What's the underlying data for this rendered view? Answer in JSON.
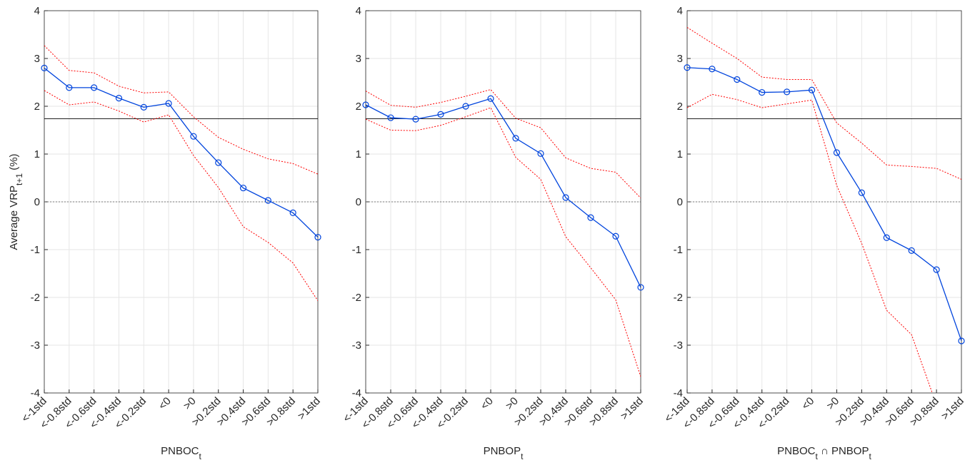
{
  "chart_data": [
    {
      "type": "line",
      "ylabel": [
        {
          "text": "Average VRP"
        },
        {
          "text": "t+1",
          "sub": true
        },
        {
          "text": " (%)"
        }
      ],
      "xlabel": [
        {
          "text": "PNBOC"
        },
        {
          "text": "t",
          "sub": true
        }
      ],
      "categories": [
        "<-1std",
        "<-0.8std",
        "<-0.6std",
        "<-0.4std",
        "<-0.2std",
        "<0",
        ">0",
        ">0.2std",
        ">0.4std",
        ">0.6std",
        ">0.8std",
        ">1std"
      ],
      "ylim": [
        -4,
        4
      ],
      "yticks": [
        -4,
        -3,
        -2,
        -1,
        0,
        1,
        2,
        3,
        4
      ],
      "grid": true,
      "hlines": [
        {
          "value": 1.74,
          "color": "#000000",
          "style": "solid"
        },
        {
          "value": 0,
          "color": "#555555",
          "style": "dotted"
        }
      ],
      "series": [
        {
          "color": "#ff0000",
          "style": "dotted",
          "values": [
            3.27,
            2.75,
            2.7,
            2.42,
            2.28,
            2.3,
            1.78,
            1.35,
            1.1,
            0.9,
            0.8,
            0.58
          ]
        },
        {
          "color": "#ff0000",
          "style": "dotted",
          "values": [
            2.33,
            2.03,
            2.09,
            1.9,
            1.67,
            1.82,
            0.97,
            0.3,
            -0.52,
            -0.85,
            -1.28,
            -2.07
          ]
        },
        {
          "color": "#0044dd",
          "style": "solid",
          "marker": "circle",
          "values": [
            2.8,
            2.39,
            2.39,
            2.17,
            1.98,
            2.06,
            1.37,
            0.82,
            0.29,
            0.03,
            -0.23,
            -0.74
          ]
        }
      ]
    },
    {
      "type": "line",
      "xlabel": [
        {
          "text": "PNBOP"
        },
        {
          "text": "t",
          "sub": true
        }
      ],
      "categories": [
        "<-1std",
        "<-0.8std",
        "<-0.6std",
        "<-0.4std",
        "<-0.2std",
        "<0",
        ">0",
        ">0.2std",
        ">0.4std",
        ">0.6std",
        ">0.8std",
        ">1std"
      ],
      "ylim": [
        -4,
        4
      ],
      "yticks": [
        -4,
        -3,
        -2,
        -1,
        0,
        1,
        2,
        3,
        4
      ],
      "grid": true,
      "hlines": [
        {
          "value": 1.74,
          "color": "#000000",
          "style": "solid"
        },
        {
          "value": 0,
          "color": "#555555",
          "style": "dotted"
        }
      ],
      "series": [
        {
          "color": "#ff0000",
          "style": "dotted",
          "values": [
            2.32,
            2.02,
            1.98,
            2.08,
            2.21,
            2.35,
            1.75,
            1.55,
            0.92,
            0.7,
            0.62,
            0.08
          ]
        },
        {
          "color": "#ff0000",
          "style": "dotted",
          "values": [
            1.73,
            1.5,
            1.49,
            1.6,
            1.78,
            1.97,
            0.93,
            0.47,
            -0.73,
            -1.38,
            -2.05,
            -3.66
          ]
        },
        {
          "color": "#0044dd",
          "style": "solid",
          "marker": "circle",
          "values": [
            2.03,
            1.76,
            1.73,
            1.83,
            2.0,
            2.16,
            1.33,
            1.01,
            0.09,
            -0.33,
            -0.72,
            -1.79
          ]
        }
      ]
    },
    {
      "type": "line",
      "xlabel": [
        {
          "text": "PNBOC"
        },
        {
          "text": "t",
          "sub": true
        },
        {
          "text": " ∩ PNBOP"
        },
        {
          "text": "t",
          "sub": true
        }
      ],
      "categories": [
        "<-1std",
        "<-0.8std",
        "<-0.6std",
        "<-0.4std",
        "<-0.2std",
        "<0",
        ">0",
        ">0.2std",
        ">0.4std",
        ">0.6std",
        ">0.8std",
        ">1std"
      ],
      "ylim": [
        -4,
        4
      ],
      "yticks": [
        -4,
        -3,
        -2,
        -1,
        0,
        1,
        2,
        3,
        4
      ],
      "grid": true,
      "hlines": [
        {
          "value": 1.74,
          "color": "#000000",
          "style": "solid"
        },
        {
          "value": 0,
          "color": "#555555",
          "style": "dotted"
        }
      ],
      "series": [
        {
          "color": "#ff0000",
          "style": "dotted",
          "values": [
            3.65,
            3.32,
            3.0,
            2.61,
            2.56,
            2.56,
            1.65,
            1.23,
            0.77,
            0.74,
            0.7,
            0.47
          ]
        },
        {
          "color": "#ff0000",
          "style": "dotted",
          "values": [
            1.97,
            2.25,
            2.14,
            1.97,
            2.05,
            2.13,
            0.34,
            -0.87,
            -2.27,
            -2.78,
            -4.25,
            null
          ]
        },
        {
          "color": "#0044dd",
          "style": "solid",
          "marker": "circle",
          "values": [
            2.81,
            2.78,
            2.56,
            2.29,
            2.3,
            2.34,
            1.03,
            0.19,
            -0.75,
            -1.02,
            -1.42,
            -2.91
          ]
        }
      ]
    }
  ]
}
